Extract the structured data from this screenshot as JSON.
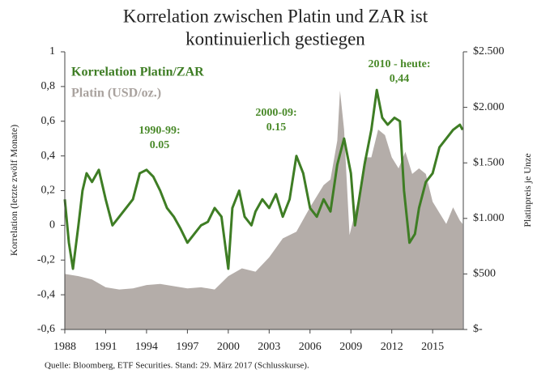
{
  "chart_data": {
    "type": "line",
    "title": [
      "Korrelation zwischen Platin und ZAR ist",
      "kontinuierlich gestiegen"
    ],
    "ylabel": "Korrelation (letzte zwölf Monate)",
    "y2label": "Platinpreis je Unze",
    "source": "Quelle: Bloomberg, ETF Securities. Stand: 29. März 2017 (Schlusskurse).",
    "annotations": [
      [
        "1990-99:",
        "0.05"
      ],
      [
        "2000-09:",
        "0.15"
      ],
      [
        "2010 - heute:",
        "0,44"
      ]
    ],
    "xlim": [
      1988,
      2017.25
    ],
    "xticks": [
      1988,
      1991,
      1994,
      1997,
      2000,
      2003,
      2006,
      2009,
      2012,
      2015
    ],
    "ylim": [
      -0.6,
      1
    ],
    "yticks": [
      {
        "value": -0.6,
        "label": "-0,6"
      },
      {
        "value": -0.4,
        "label": "-0,4"
      },
      {
        "value": -0.2,
        "label": "-0,2"
      },
      0,
      {
        "value": 0.2,
        "label": "0,2"
      },
      {
        "value": 0.4,
        "label": "0,4"
      },
      {
        "value": 0.6,
        "label": "0,6"
      },
      {
        "value": 0.8,
        "label": "0,8"
      },
      1
    ],
    "y2lim": [
      0,
      2500
    ],
    "y2ticks": [
      {
        "value": 0,
        "label": "$-"
      },
      {
        "value": 500,
        "label": "$500"
      },
      {
        "value": 1000,
        "label": "$1.000"
      },
      {
        "value": 1500,
        "label": "$1.500"
      },
      {
        "value": 2000,
        "label": "$2.000"
      },
      {
        "value": 2500,
        "label": "$2.500"
      }
    ],
    "series": [
      {
        "name": "Platin (USD/oz.)",
        "color": "#b4ada9",
        "kind": "area",
        "axis": "y2",
        "x": [
          1988,
          1989,
          1990,
          1991,
          1992,
          1993,
          1994,
          1995,
          1996,
          1997,
          1998,
          1999,
          2000,
          2001,
          2002,
          2003,
          2004,
          2005,
          2006,
          2007,
          2007.5,
          2008,
          2008.2,
          2008.5,
          2008.9,
          2009.5,
          2010,
          2010.5,
          2011,
          2011.5,
          2012,
          2012.5,
          2013,
          2013.5,
          2014,
          2014.5,
          2015,
          2015.5,
          2016,
          2016.5,
          2017,
          2017.2
        ],
        "values": [
          500,
          480,
          450,
          380,
          360,
          370,
          400,
          410,
          390,
          370,
          380,
          360,
          480,
          550,
          520,
          650,
          820,
          880,
          1100,
          1300,
          1350,
          1700,
          2150,
          1800,
          850,
          1150,
          1550,
          1550,
          1800,
          1750,
          1550,
          1450,
          1600,
          1400,
          1450,
          1400,
          1150,
          1050,
          950,
          1100,
          980,
          950
        ]
      },
      {
        "name": "Korrelation Platin/ZAR",
        "color": "#3e7d24",
        "kind": "line",
        "x": [
          1988,
          1988.3,
          1988.6,
          1989,
          1989.3,
          1989.6,
          1990,
          1990.5,
          1991,
          1991.5,
          1992,
          1992.5,
          1993,
          1993.5,
          1994,
          1994.5,
          1995,
          1995.5,
          1996,
          1996.5,
          1997,
          1997.5,
          1998,
          1998.5,
          1999,
          1999.5,
          2000,
          2000.3,
          2000.8,
          2001.2,
          2001.7,
          2002,
          2002.5,
          2003,
          2003.5,
          2004,
          2004.5,
          2005,
          2005.5,
          2006,
          2006.5,
          2007,
          2007.5,
          2008,
          2008.5,
          2009,
          2009.3,
          2009.6,
          2010,
          2010.5,
          2010.9,
          2011.3,
          2011.7,
          2012.2,
          2012.6,
          2012.9,
          2013.3,
          2013.7,
          2014,
          2014.5,
          2015,
          2015.5,
          2016,
          2016.5,
          2017,
          2017.2
        ],
        "values": [
          0.15,
          -0.1,
          -0.25,
          0.0,
          0.2,
          0.3,
          0.25,
          0.32,
          0.15,
          0.0,
          0.05,
          0.1,
          0.15,
          0.3,
          0.32,
          0.28,
          0.2,
          0.1,
          0.05,
          -0.02,
          -0.1,
          -0.05,
          0.0,
          0.02,
          0.1,
          0.05,
          -0.25,
          0.1,
          0.2,
          0.05,
          0.0,
          0.08,
          0.15,
          0.1,
          0.18,
          0.05,
          0.15,
          0.4,
          0.3,
          0.1,
          0.05,
          0.15,
          0.08,
          0.35,
          0.5,
          0.3,
          0.0,
          0.15,
          0.35,
          0.55,
          0.78,
          0.62,
          0.58,
          0.62,
          0.6,
          0.2,
          -0.1,
          -0.05,
          0.1,
          0.25,
          0.3,
          0.45,
          0.5,
          0.55,
          0.58,
          0.55
        ]
      }
    ]
  }
}
